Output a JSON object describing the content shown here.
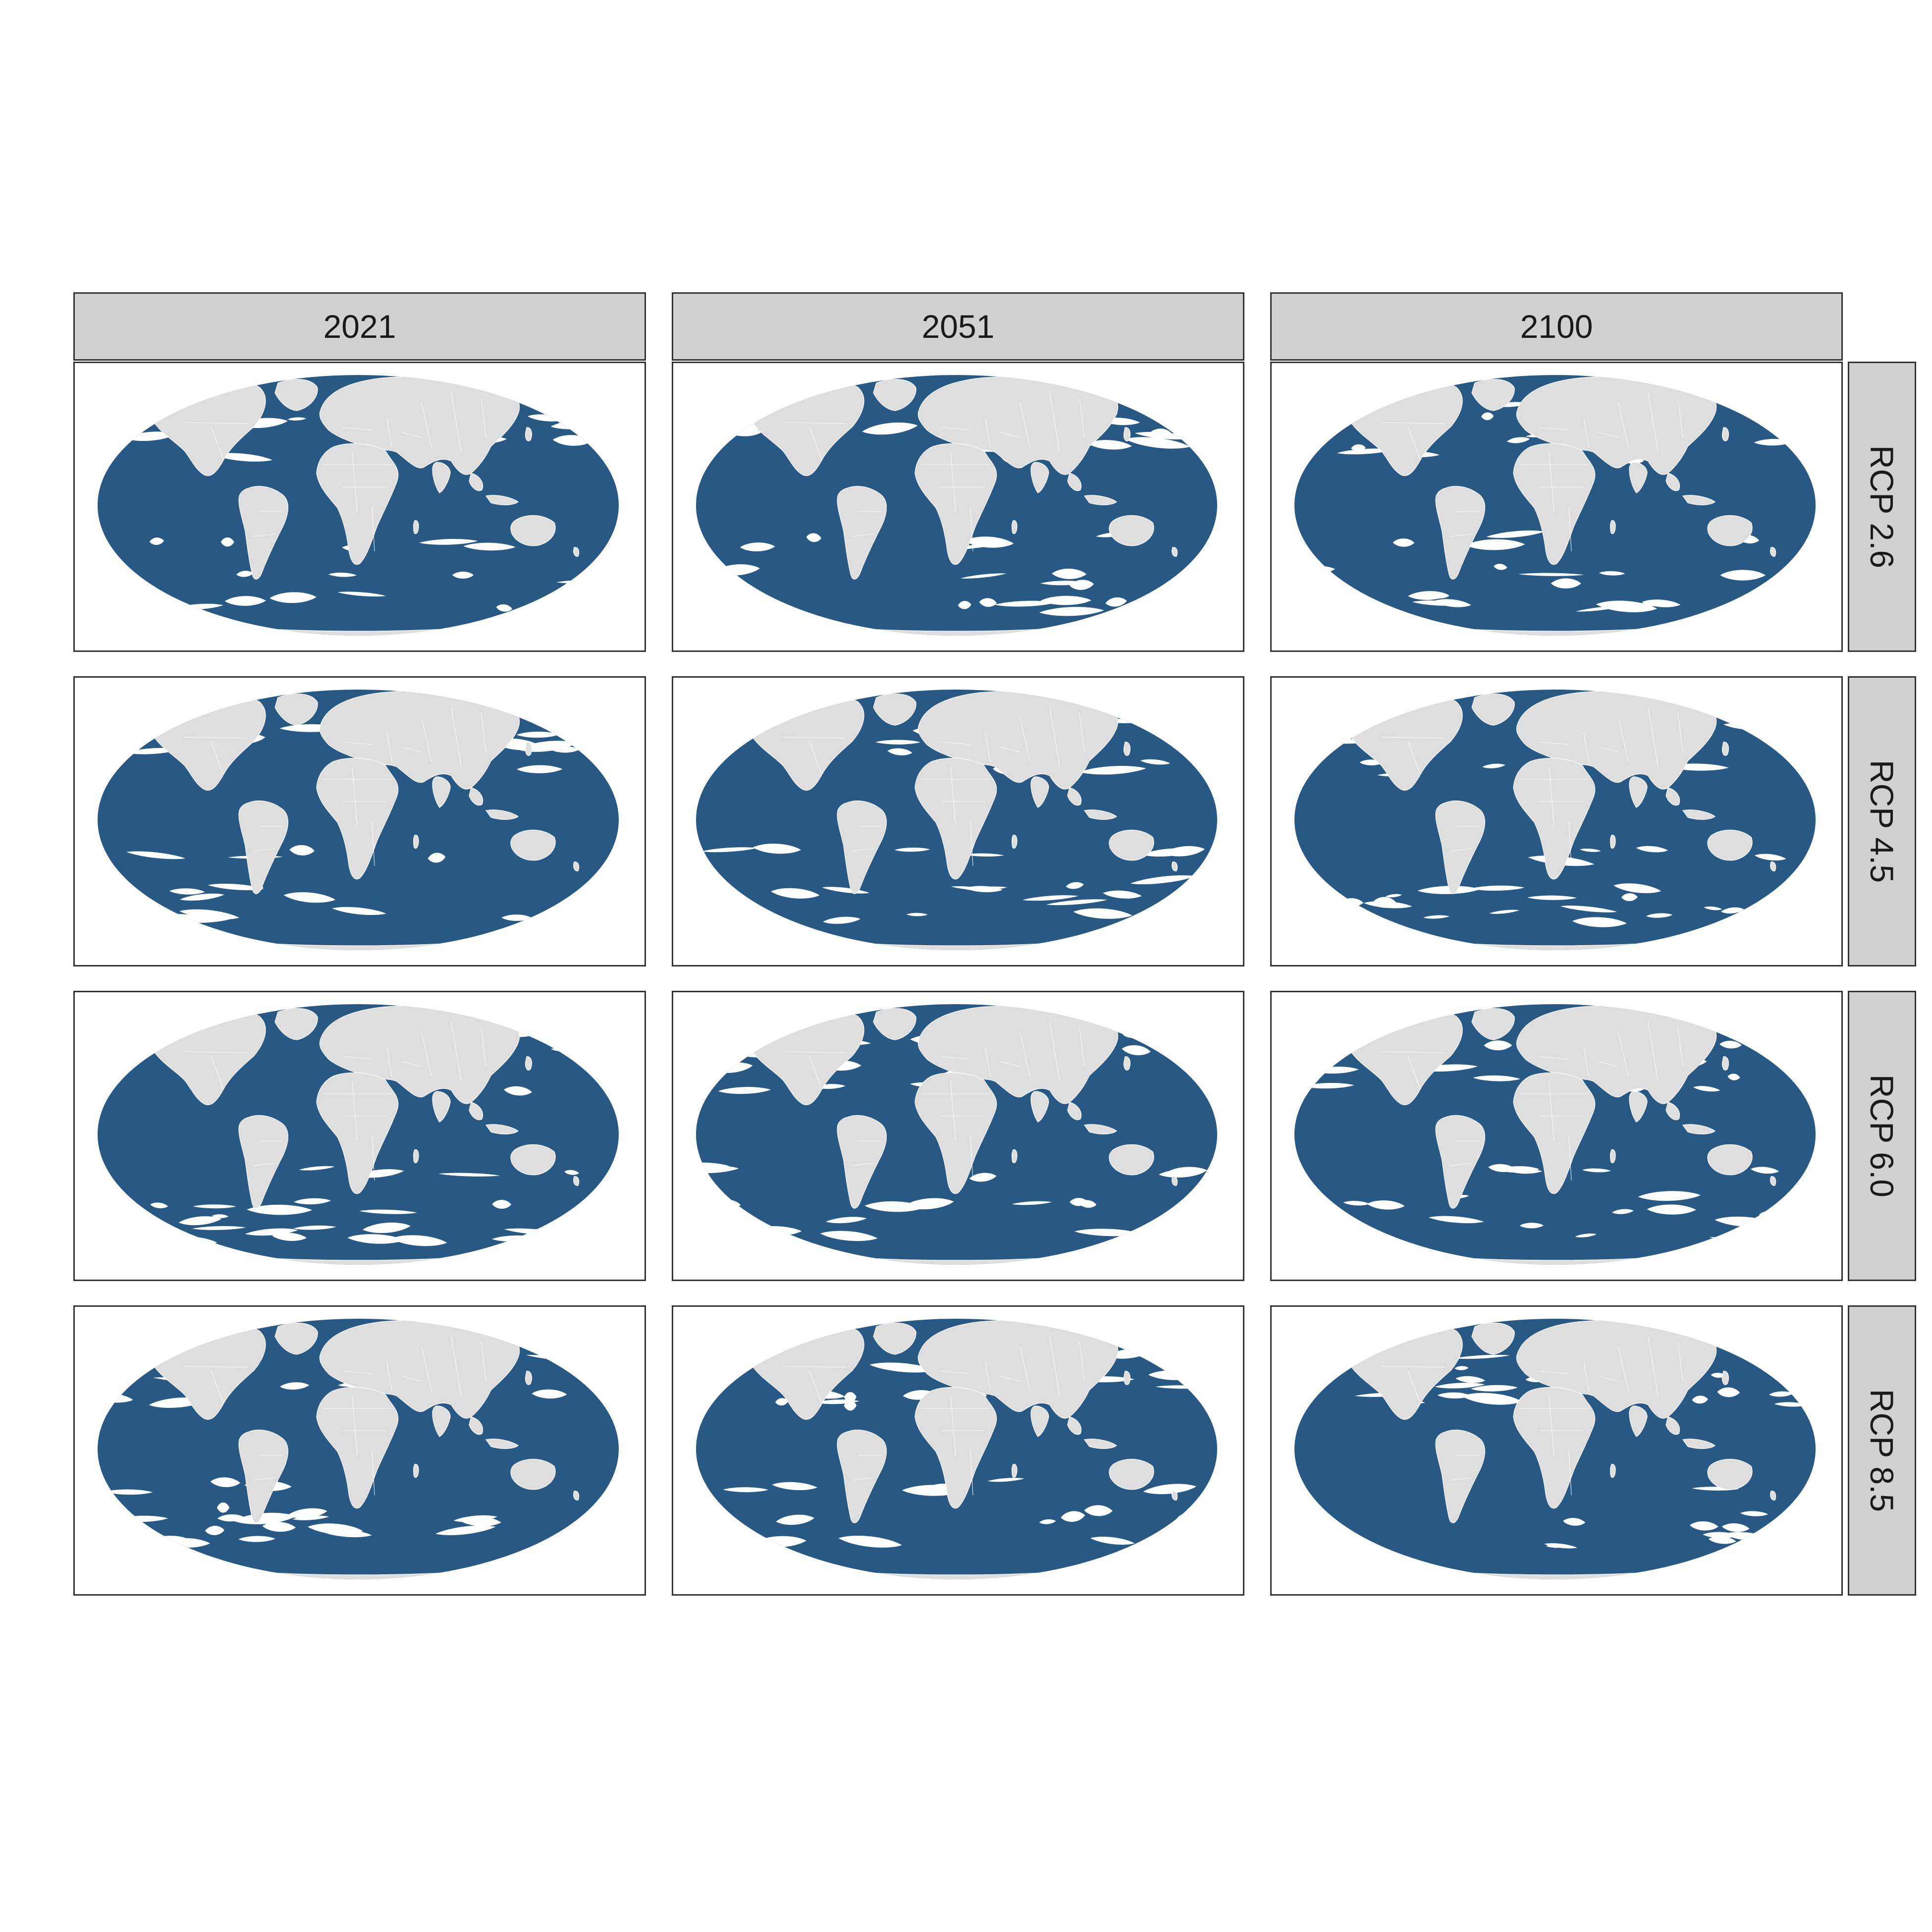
{
  "columns": [
    "2021",
    "2051",
    "2100"
  ],
  "rows": [
    "RCP 2.6",
    "RCP 4.5",
    "RCP 6.0",
    "RCP 8.5"
  ],
  "colors": {
    "ocean_fill": "#285985",
    "land": "#dedede",
    "strip_background": "#d1d1d1",
    "panel_border": "#333333",
    "background": "#ffffff"
  },
  "map": {
    "projection": "Mollweide",
    "type": "global faceted map"
  }
}
